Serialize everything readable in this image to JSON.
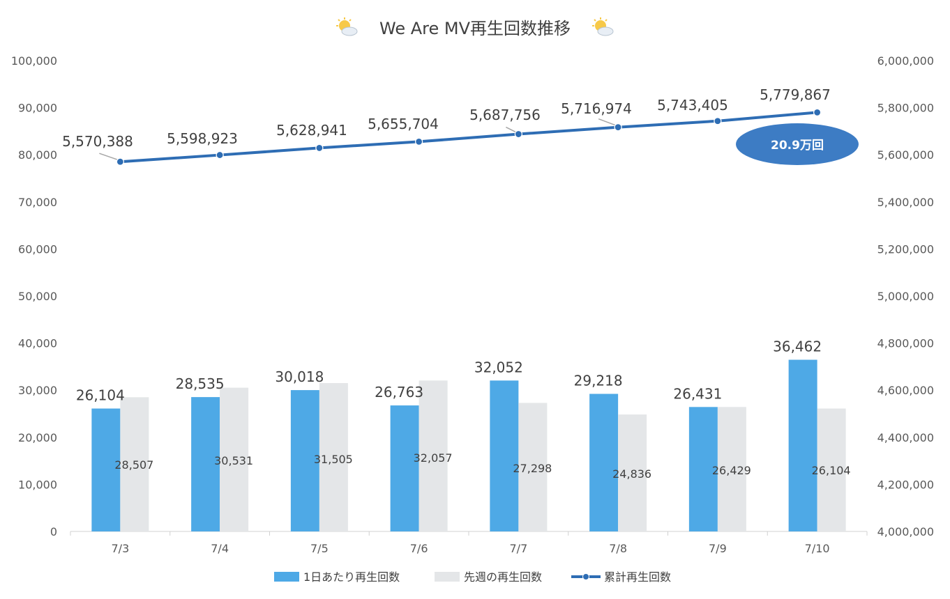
{
  "chart_data": {
    "type": "bar",
    "title": "We Are MV再生回数推移",
    "title_icon": "sun-behind-cloud-icon",
    "categories": [
      "7/3",
      "7/4",
      "7/5",
      "7/6",
      "7/7",
      "7/8",
      "7/9",
      "7/10"
    ],
    "series": [
      {
        "name": "1日あたり再生回数",
        "type": "bar",
        "axis": "left",
        "color": "#4EA9E6",
        "values": [
          26104,
          28535,
          30018,
          26763,
          32052,
          29218,
          26431,
          36462
        ],
        "labels": [
          "26,104",
          "28,535",
          "30,018",
          "26,763",
          "32,052",
          "29,218",
          "26,431",
          "36,462"
        ]
      },
      {
        "name": "先週の再生回数",
        "type": "bar",
        "axis": "left",
        "color": "#E4E6E8",
        "values": [
          28507,
          30531,
          31505,
          32057,
          27298,
          24836,
          26429,
          26104
        ],
        "labels": [
          "28,507",
          "30,531",
          "31,505",
          "32,057",
          "27,298",
          "24,836",
          "26,429",
          "26,104"
        ]
      },
      {
        "name": "累計再生回数",
        "type": "line",
        "axis": "right",
        "color": "#2E6DB4",
        "values": [
          5570388,
          5598923,
          5628941,
          5655704,
          5687756,
          5716974,
          5743405,
          5779867
        ],
        "labels": [
          "5,570,388",
          "5,598,923",
          "5,628,941",
          "5,655,704",
          "5,687,756",
          "5,716,974",
          "5,743,405",
          "5,779,867"
        ]
      }
    ],
    "y_left": {
      "min": 0,
      "max": 100000,
      "ticks": [
        "0",
        "10,000",
        "20,000",
        "30,000",
        "40,000",
        "50,000",
        "60,000",
        "70,000",
        "80,000",
        "90,000",
        "100,000"
      ]
    },
    "y_right": {
      "min": 4000000,
      "max": 6000000,
      "ticks": [
        "4,000,000",
        "4,200,000",
        "4,400,000",
        "4,600,000",
        "4,800,000",
        "5,000,000",
        "5,200,000",
        "5,400,000",
        "5,600,000",
        "5,800,000",
        "6,000,000"
      ]
    },
    "grid": false,
    "legend": "bottom",
    "annotation": {
      "text": "20.9万回",
      "color": "#3D7CC4"
    }
  }
}
